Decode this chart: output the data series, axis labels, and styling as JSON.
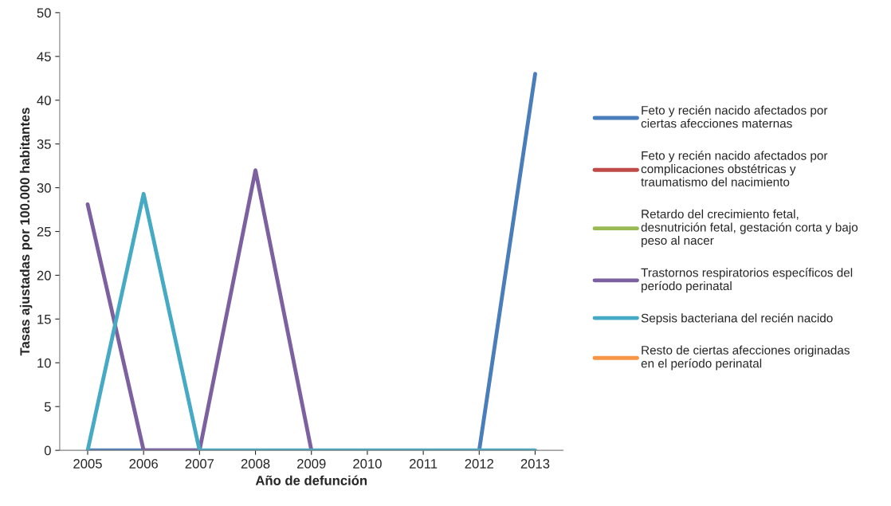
{
  "chart_data": {
    "type": "line",
    "xlabel": "Año de defunción",
    "ylabel": "Tasas ajustadas por 100.000 habitantes",
    "categories": [
      "2005",
      "2006",
      "2007",
      "2008",
      "2009",
      "2010",
      "2011",
      "2012",
      "2013"
    ],
    "series": [
      {
        "name": "Feto y recién nacido afectados por\nciertas afecciones maternas",
        "color": "#4a7ebb",
        "values": [
          0,
          0,
          0,
          null,
          null,
          null,
          null,
          0,
          43
        ]
      },
      {
        "name": "Feto y recién nacido afectados por\ncomplicaciones obstétricas y\ntraumatismo del nacimiento",
        "color": "#be4b48",
        "values": [
          null,
          null,
          null,
          null,
          null,
          null,
          null,
          null,
          null
        ]
      },
      {
        "name": "Retardo del crecimiento fetal,\ndesnutrición fetal, gestación corta y bajo\npeso al nacer",
        "color": "#98b954",
        "values": [
          null,
          null,
          null,
          null,
          null,
          null,
          null,
          null,
          null
        ]
      },
      {
        "name": "Trastornos respiratorios específicos del\nperíodo perinatal",
        "color": "#7d60a0",
        "values": [
          28.1,
          0,
          0,
          32,
          0,
          null,
          null,
          null,
          null
        ]
      },
      {
        "name": "Sepsis bacteriana del recién nacido",
        "color": "#46aac5",
        "values": [
          0,
          29.3,
          0,
          0,
          0,
          0,
          0,
          0,
          0
        ]
      },
      {
        "name": "Resto de ciertas afecciones originadas\nen el período perinatal",
        "color": "#f79646",
        "values": [
          null,
          null,
          null,
          null,
          null,
          null,
          null,
          null,
          null
        ]
      }
    ],
    "ylim": [
      0,
      50
    ],
    "yticks": [
      0,
      5,
      10,
      15,
      20,
      25,
      30,
      35,
      40,
      45,
      50
    ],
    "grid": false,
    "legend": "right",
    "marker": "none",
    "line_style": "solid"
  }
}
